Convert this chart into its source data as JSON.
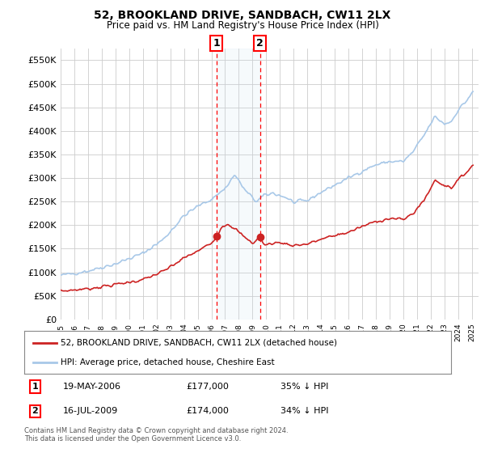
{
  "title": "52, BROOKLAND DRIVE, SANDBACH, CW11 2LX",
  "subtitle": "Price paid vs. HM Land Registry's House Price Index (HPI)",
  "hpi_label": "HPI: Average price, detached house, Cheshire East",
  "price_label": "52, BROOKLAND DRIVE, SANDBACH, CW11 2LX (detached house)",
  "footnote": "Contains HM Land Registry data © Crown copyright and database right 2024.\nThis data is licensed under the Open Government Licence v3.0.",
  "ylim": [
    0,
    575000
  ],
  "yticks": [
    0,
    50000,
    100000,
    150000,
    200000,
    250000,
    300000,
    350000,
    400000,
    450000,
    500000,
    550000
  ],
  "ytick_labels": [
    "£0",
    "£50K",
    "£100K",
    "£150K",
    "£200K",
    "£250K",
    "£300K",
    "£350K",
    "£400K",
    "£450K",
    "£500K",
    "£550K"
  ],
  "hpi_color": "#a8c8e8",
  "price_color": "#cc2222",
  "transaction1": {
    "date": "19-MAY-2006",
    "price": 177000,
    "label": "1",
    "pct": "35% ↓ HPI",
    "x_year": 2006.38
  },
  "transaction2": {
    "date": "16-JUL-2009",
    "price": 174000,
    "label": "2",
    "pct": "34% ↓ HPI",
    "x_year": 2009.54
  },
  "vline1_x": 2006.38,
  "vline2_x": 2009.54,
  "marker1_y": 177000,
  "marker2_y": 174000,
  "shaded_region": [
    2006.38,
    2009.54
  ],
  "background_color": "#ffffff",
  "grid_color": "#cccccc",
  "xlim": [
    1995.0,
    2025.5
  ]
}
